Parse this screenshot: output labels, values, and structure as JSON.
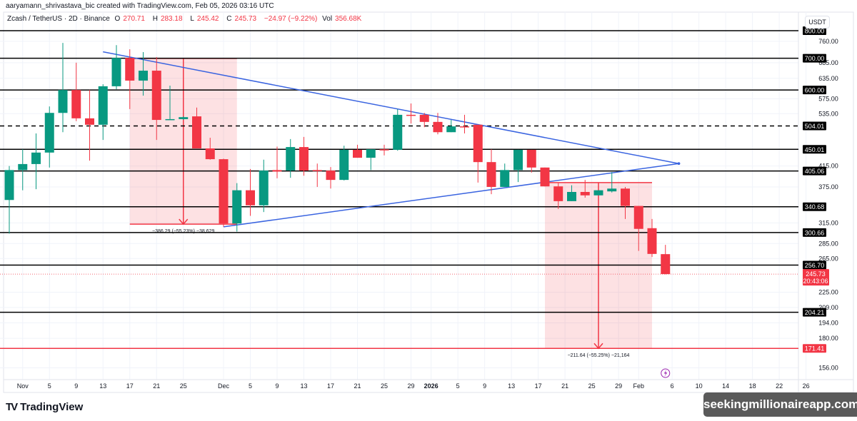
{
  "attribution": "aaryamann_shrivastava_bic created with TradingView.com, Feb 05, 2026 03:16 UTC",
  "legend": {
    "symbol": "Zcash / TetherUS · 2D · Binance",
    "open_label": "O",
    "open": "270.71",
    "high_label": "H",
    "high": "283.18",
    "low_label": "L",
    "low": "245.42",
    "close_label": "C",
    "close": "245.73",
    "change": "−24.97 (−9.22%)",
    "vol_label": "Vol",
    "vol": "356.68K"
  },
  "currency": "USDT",
  "footer": {
    "logo_text": "TradingView",
    "watermark": "seekingmillionaireapp.com"
  },
  "colors": {
    "up": "#089981",
    "down": "#f23645",
    "trendline": "#3a64e0",
    "level": "#000000",
    "grid": "#f0f3fa",
    "alert_icon": "#9c27b0"
  },
  "chart_data": {
    "type": "candlestick",
    "scale": "log",
    "ylim": [
      150,
      820
    ],
    "grid": true,
    "columns": [
      "date",
      "open",
      "high",
      "low",
      "close"
    ],
    "candles": [
      [
        "2025-10-30",
        352,
        415,
        299,
        407
      ],
      [
        "2025-11-01",
        407,
        450,
        369,
        419
      ],
      [
        "2025-11-03",
        419,
        486,
        371,
        443
      ],
      [
        "2025-11-05",
        443,
        554,
        412,
        537
      ],
      [
        "2025-11-07",
        537,
        754,
        489,
        600
      ],
      [
        "2025-11-09",
        600,
        685,
        516,
        523
      ],
      [
        "2025-11-11",
        523,
        600,
        426,
        507
      ],
      [
        "2025-11-13",
        507,
        617,
        471,
        611
      ],
      [
        "2025-11-15",
        611,
        746,
        602,
        701
      ],
      [
        "2025-11-17",
        701,
        731,
        547,
        628
      ],
      [
        "2025-11-19",
        628,
        721,
        584,
        659
      ],
      [
        "2025-11-21",
        659,
        704,
        471,
        519
      ],
      [
        "2025-11-23",
        519,
        613,
        519,
        521
      ],
      [
        "2025-11-25",
        521,
        528,
        519,
        526
      ],
      [
        "2025-11-27",
        528,
        551,
        452,
        452
      ],
      [
        "2025-11-29",
        452,
        476,
        428,
        429
      ],
      [
        "2025-12-01",
        429,
        430,
        309,
        314
      ],
      [
        "2025-12-03",
        314,
        382,
        302,
        369
      ],
      [
        "2025-12-05",
        369,
        409,
        326,
        343
      ],
      [
        "2025-12-07",
        343,
        428,
        332,
        406
      ],
      [
        "2025-12-09",
        407,
        456,
        391,
        404
      ],
      [
        "2025-12-11",
        406,
        473,
        392,
        455
      ],
      [
        "2025-12-13",
        455,
        478,
        396,
        406
      ],
      [
        "2025-12-15",
        407,
        420,
        375,
        406
      ],
      [
        "2025-12-17",
        406,
        413,
        372,
        388
      ],
      [
        "2025-12-19",
        388,
        458,
        387,
        449
      ],
      [
        "2025-12-21",
        449,
        460,
        432,
        432
      ],
      [
        "2025-12-23",
        432,
        450,
        407,
        450
      ],
      [
        "2025-12-25",
        450,
        460,
        437,
        449
      ],
      [
        "2025-12-27",
        449,
        547,
        447,
        532
      ],
      [
        "2025-12-29",
        532,
        562,
        510,
        530
      ],
      [
        "2025-12-31",
        532,
        537,
        501,
        514
      ],
      [
        "2026-01-02",
        514,
        537,
        484,
        489
      ],
      [
        "2026-01-04",
        489,
        519,
        489,
        503
      ],
      [
        "2026-01-06",
        503,
        532,
        486,
        501
      ],
      [
        "2026-01-08",
        507,
        507,
        383,
        423
      ],
      [
        "2026-01-10",
        423,
        450,
        362,
        375
      ],
      [
        "2026-01-12",
        375,
        420,
        375,
        407
      ],
      [
        "2026-01-14",
        407,
        449,
        384,
        449
      ],
      [
        "2026-01-16",
        449,
        449,
        402,
        412
      ],
      [
        "2026-01-18",
        412,
        412,
        376,
        376
      ],
      [
        "2026-01-20",
        376,
        382,
        337,
        350
      ],
      [
        "2026-01-22",
        350,
        378,
        350,
        366
      ],
      [
        "2026-01-24",
        366,
        388,
        356,
        360
      ],
      [
        "2026-01-26",
        360,
        369,
        360,
        369
      ],
      [
        "2026-01-28",
        367,
        403,
        365,
        372
      ],
      [
        "2026-01-30",
        372,
        375,
        321,
        342
      ],
      [
        "2026-02-01",
        342,
        342,
        275,
        306
      ],
      [
        "2026-02-03",
        307,
        321,
        267,
        271
      ],
      [
        "2026-02-05",
        270.71,
        283.18,
        245.42,
        245.73
      ]
    ],
    "horizontal_levels": [
      {
        "price": 800.0,
        "label": "800.00",
        "style": "solid"
      },
      {
        "price": 700.0,
        "label": "700.00",
        "style": "solid"
      },
      {
        "price": 600.0,
        "label": "600.00",
        "style": "solid"
      },
      {
        "price": 504.01,
        "label": "504.01",
        "style": "dashed"
      },
      {
        "price": 450.01,
        "label": "450.01",
        "style": "solid"
      },
      {
        "price": 405.06,
        "label": "405.06",
        "style": "solid"
      },
      {
        "price": 340.68,
        "label": "340.68",
        "style": "solid"
      },
      {
        "price": 300.66,
        "label": "300.66",
        "style": "solid"
      },
      {
        "price": 256.7,
        "label": "256.70",
        "style": "solid"
      },
      {
        "price": 204.21,
        "label": "204.21",
        "style": "solid"
      },
      {
        "price": 171.41,
        "label": "171.41",
        "style": "solid",
        "color": "#f23645"
      }
    ],
    "trendlines": [
      {
        "from": [
          "2025-11-13",
          722
        ],
        "to": [
          "2026-02-07",
          420
        ]
      },
      {
        "from": [
          "2025-12-01",
          309
        ],
        "to": [
          "2026-02-07",
          420
        ]
      }
    ],
    "measure_boxes": [
      {
        "start": "2025-11-17",
        "end": "2025-12-03",
        "arrow_date": "2025-11-25",
        "top": 699.4,
        "bottom": 313.1,
        "label": "−386.29 (−55.23%) −38,629"
      },
      {
        "start": "2026-01-18",
        "end": "2026-02-03",
        "arrow_date": "2026-01-26",
        "top": 383.05,
        "bottom": 171.41,
        "label": "−211.64 (−55.25%) −21,164"
      }
    ],
    "current_price": {
      "price": 245.73,
      "label": "245.73",
      "countdown": "20:43:06"
    },
    "y_ticks": [
      "760.00",
      "685.00",
      "635.00",
      "575.00",
      "535.00",
      "415.00",
      "375.00",
      "315.00",
      "285.00",
      "265.00",
      "225.00",
      "209.00",
      "194.00",
      "180.00",
      "156.00"
    ],
    "x_ticks": [
      [
        "2025-11-01",
        "Nov"
      ],
      [
        "2025-11-05",
        "5"
      ],
      [
        "2025-11-09",
        "9"
      ],
      [
        "2025-11-13",
        "13"
      ],
      [
        "2025-11-17",
        "17"
      ],
      [
        "2025-11-21",
        "21"
      ],
      [
        "2025-11-25",
        "25"
      ],
      [
        "2025-12-01",
        "Dec"
      ],
      [
        "2025-12-05",
        "5"
      ],
      [
        "2025-12-09",
        "9"
      ],
      [
        "2025-12-13",
        "13"
      ],
      [
        "2025-12-17",
        "17"
      ],
      [
        "2025-12-21",
        "21"
      ],
      [
        "2025-12-25",
        "25"
      ],
      [
        "2025-12-29",
        "29"
      ],
      [
        "2026-01-01",
        "2026"
      ],
      [
        "2026-01-05",
        "5"
      ],
      [
        "2026-01-09",
        "9"
      ],
      [
        "2026-01-13",
        "13"
      ],
      [
        "2026-01-17",
        "17"
      ],
      [
        "2026-01-21",
        "21"
      ],
      [
        "2026-01-25",
        "25"
      ],
      [
        "2026-01-29",
        "29"
      ],
      [
        "2026-02-01",
        "Feb"
      ],
      [
        "2026-02-06",
        "6"
      ],
      [
        "2026-02-10",
        "10"
      ],
      [
        "2026-02-14",
        "14"
      ],
      [
        "2026-02-18",
        "18"
      ],
      [
        "2026-02-22",
        "22"
      ],
      [
        "2026-02-26",
        "26"
      ]
    ],
    "alert_marker_date": "2026-02-05"
  }
}
